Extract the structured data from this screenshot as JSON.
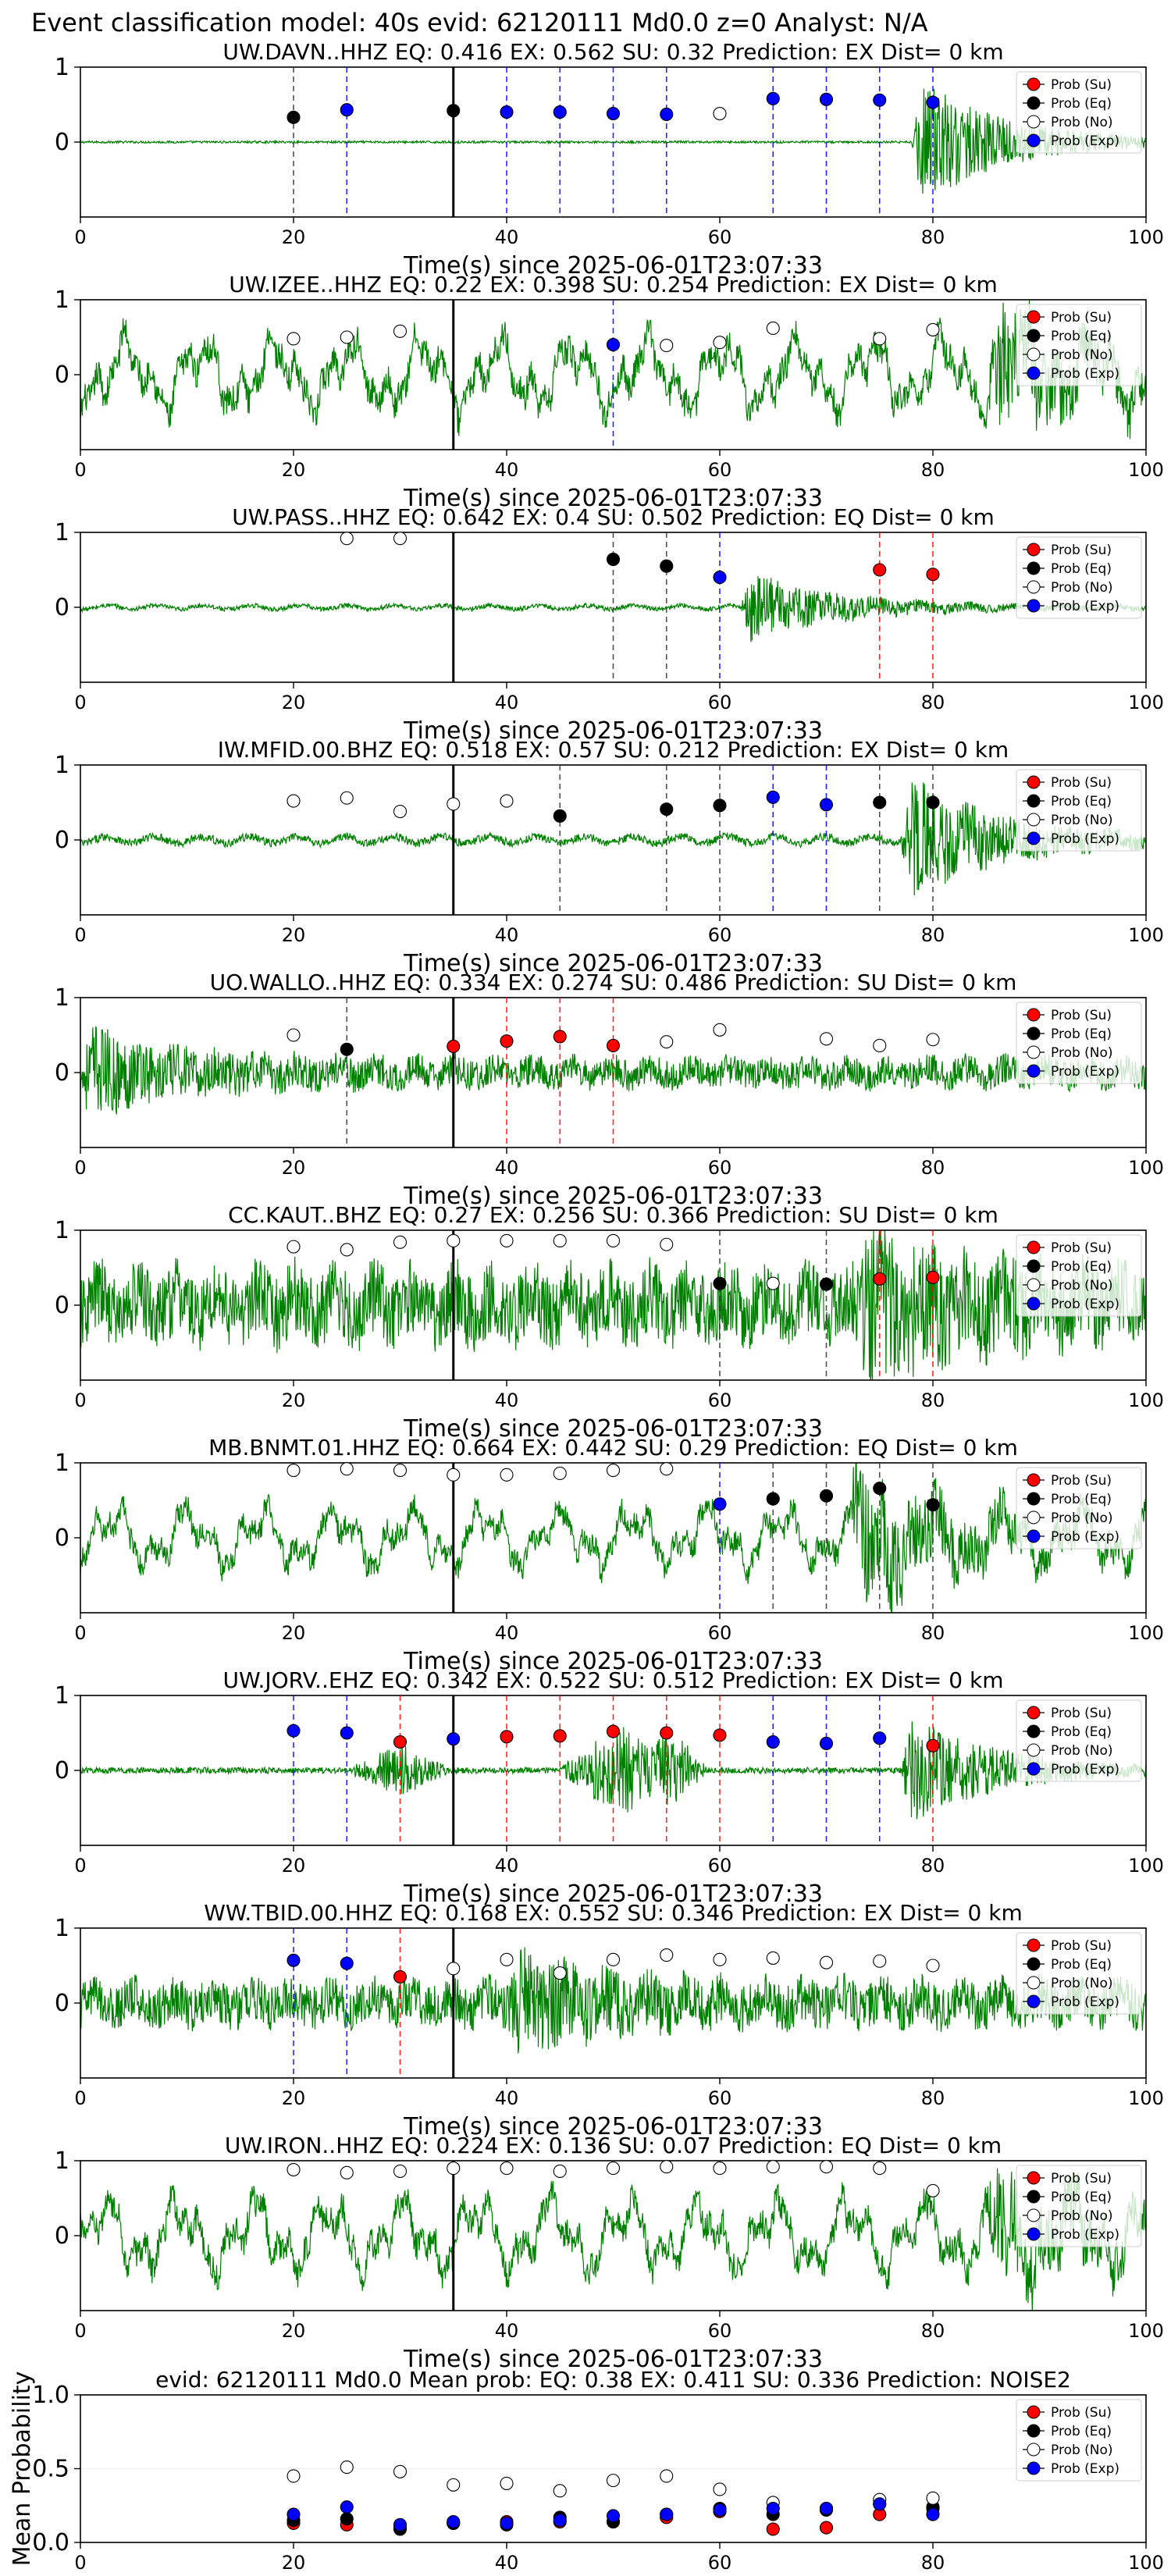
{
  "figure_title": "Event classification model: 40s evid: 62120111 Md0.0 z=0 Analyst: N/A",
  "colors": {
    "waveform": "#008000",
    "su": "#ff0000",
    "eq": "#000000",
    "no": "#ffffff",
    "exp": "#0000ff",
    "picked_line": "#000000"
  },
  "legend": [
    "Prob (Su)",
    "Prob (Eq)",
    "Prob (No)",
    "Prob (Exp)"
  ],
  "chart_data": [
    {
      "type": "scatter",
      "title": "UW.DAVN..HHZ   EQ: 0.416  EX: 0.562  SU: 0.32   Prediction: EX    Dist= 0 km",
      "xlabel": "Time(s) since 2025-06-01T23:07:33",
      "ylabel": "",
      "xlim": [
        0,
        100
      ],
      "ylim": [
        -1,
        1
      ],
      "xticks": [
        0,
        20,
        40,
        60,
        80,
        100
      ],
      "yticks": [
        0,
        1
      ],
      "waveform": {
        "style": "spike",
        "amp": 0.015,
        "burst_start": 78,
        "burst_amp": 0.95
      },
      "picked_time": 35,
      "points": [
        [
          20,
          "eq",
          0.33
        ],
        [
          25,
          "exp",
          0.43
        ],
        [
          35,
          "eq",
          0.42
        ],
        [
          40,
          "exp",
          0.4
        ],
        [
          45,
          "exp",
          0.4
        ],
        [
          50,
          "exp",
          0.38
        ],
        [
          55,
          "exp",
          0.37
        ],
        [
          60,
          "no",
          0.38
        ],
        [
          65,
          "exp",
          0.58
        ],
        [
          70,
          "exp",
          0.57
        ],
        [
          75,
          "exp",
          0.56
        ],
        [
          80,
          "exp",
          0.53
        ]
      ],
      "legend_position": "top-right"
    },
    {
      "type": "scatter",
      "title": "UW.IZEE..HHZ   EQ: 0.22  EX: 0.398  SU: 0.254   Prediction: EX    Dist= 0 km",
      "xlabel": "Time(s) since 2025-06-01T23:07:33",
      "ylabel": "",
      "xlim": [
        0,
        100
      ],
      "ylim": [
        -1,
        1
      ],
      "xticks": [
        0,
        20,
        40,
        60,
        80,
        100
      ],
      "yticks": [
        0,
        1
      ],
      "waveform": {
        "style": "wavy",
        "amp": 0.55,
        "burst_start": 85,
        "burst_amp": 0.7
      },
      "picked_time": 35,
      "points": [
        [
          20,
          "no",
          0.48
        ],
        [
          25,
          "no",
          0.5
        ],
        [
          30,
          "no",
          0.58
        ],
        [
          50,
          "exp",
          0.4
        ],
        [
          55,
          "no",
          0.39
        ],
        [
          60,
          "no",
          0.43
        ],
        [
          65,
          "no",
          0.62
        ],
        [
          75,
          "no",
          0.48
        ],
        [
          80,
          "no",
          0.6
        ]
      ],
      "legend_position": "top-right"
    },
    {
      "type": "scatter",
      "title": "UW.PASS..HHZ   EQ: 0.642  EX: 0.4  SU: 0.502   Prediction: EQ    Dist= 0 km",
      "xlabel": "Time(s) since 2025-06-01T23:07:33",
      "ylabel": "",
      "xlim": [
        0,
        100
      ],
      "ylim": [
        -1,
        1
      ],
      "xticks": [
        0,
        20,
        40,
        60,
        80,
        100
      ],
      "yticks": [
        0,
        1
      ],
      "waveform": {
        "style": "quiet",
        "amp": 0.05,
        "burst_start": 62,
        "burst_amp": 0.5
      },
      "picked_time": 35,
      "points": [
        [
          25,
          "no",
          0.92
        ],
        [
          30,
          "no",
          0.92
        ],
        [
          50,
          "eq",
          0.64
        ],
        [
          55,
          "eq",
          0.55
        ],
        [
          60,
          "exp",
          0.4
        ],
        [
          75,
          "su",
          0.5
        ],
        [
          80,
          "su",
          0.44
        ]
      ],
      "legend_position": "top-right"
    },
    {
      "type": "scatter",
      "title": "IW.MFID.00.BHZ   EQ: 0.518  EX: 0.57  SU: 0.212   Prediction: EX    Dist= 0 km",
      "xlabel": "Time(s) since 2025-06-01T23:07:33",
      "ylabel": "",
      "xlim": [
        0,
        100
      ],
      "ylim": [
        -1,
        1
      ],
      "xticks": [
        0,
        20,
        40,
        60,
        80,
        100
      ],
      "yticks": [
        0,
        1
      ],
      "waveform": {
        "style": "quiet",
        "amp": 0.09,
        "burst_start": 77,
        "burst_amp": 0.9
      },
      "picked_time": 35,
      "points": [
        [
          20,
          "no",
          0.52
        ],
        [
          25,
          "no",
          0.56
        ],
        [
          30,
          "no",
          0.38
        ],
        [
          35,
          "no",
          0.48
        ],
        [
          40,
          "no",
          0.52
        ],
        [
          45,
          "eq",
          0.32
        ],
        [
          55,
          "eq",
          0.41
        ],
        [
          60,
          "eq",
          0.46
        ],
        [
          65,
          "exp",
          0.57
        ],
        [
          70,
          "exp",
          0.47
        ],
        [
          75,
          "eq",
          0.5
        ],
        [
          80,
          "eq",
          0.5
        ]
      ],
      "legend_position": "top-right"
    },
    {
      "type": "scatter",
      "title": "UO.WALLO..HHZ   EQ: 0.334  EX: 0.274  SU: 0.486   Prediction: SU    Dist= 0 km",
      "xlabel": "Time(s) since 2025-06-01T23:07:33",
      "ylabel": "",
      "xlim": [
        0,
        100
      ],
      "ylim": [
        -1,
        1
      ],
      "xticks": [
        0,
        20,
        40,
        60,
        80,
        100
      ],
      "yticks": [
        0,
        1
      ],
      "waveform": {
        "style": "noisy",
        "amp": 0.2,
        "burst_start": 0,
        "burst_amp": 0.5
      },
      "picked_time": 35,
      "points": [
        [
          20,
          "no",
          0.5
        ],
        [
          25,
          "eq",
          0.31
        ],
        [
          35,
          "su",
          0.35
        ],
        [
          40,
          "su",
          0.42
        ],
        [
          45,
          "su",
          0.48
        ],
        [
          50,
          "su",
          0.36
        ],
        [
          55,
          "no",
          0.41
        ],
        [
          60,
          "no",
          0.57
        ],
        [
          70,
          "no",
          0.45
        ],
        [
          75,
          "no",
          0.36
        ],
        [
          80,
          "no",
          0.44
        ]
      ],
      "legend_position": "top-right"
    },
    {
      "type": "scatter",
      "title": "CC.KAUT..BHZ   EQ: 0.27  EX: 0.256  SU: 0.366   Prediction: SU    Dist= 0 km",
      "xlabel": "Time(s) since 2025-06-01T23:07:33",
      "ylabel": "",
      "xlim": [
        0,
        100
      ],
      "ylim": [
        -1,
        1
      ],
      "xticks": [
        0,
        20,
        40,
        60,
        80,
        100
      ],
      "yticks": [
        0,
        1
      ],
      "waveform": {
        "style": "noisy",
        "amp": 0.5,
        "burst_start": 73,
        "burst_amp": 0.8
      },
      "picked_time": 35,
      "points": [
        [
          20,
          "no",
          0.78
        ],
        [
          25,
          "no",
          0.74
        ],
        [
          30,
          "no",
          0.84
        ],
        [
          35,
          "no",
          0.86
        ],
        [
          40,
          "no",
          0.86
        ],
        [
          45,
          "no",
          0.86
        ],
        [
          50,
          "no",
          0.86
        ],
        [
          55,
          "no",
          0.81
        ],
        [
          60,
          "eq",
          0.29
        ],
        [
          65,
          "no",
          0.29
        ],
        [
          70,
          "eq",
          0.28
        ],
        [
          75,
          "su",
          0.35
        ],
        [
          80,
          "su",
          0.37
        ]
      ],
      "legend_position": "top-right"
    },
    {
      "type": "scatter",
      "title": "MB.BNMT.01.HHZ   EQ: 0.664  EX: 0.442  SU: 0.29   Prediction: EQ    Dist= 0 km",
      "xlabel": "Time(s) since 2025-06-01T23:07:33",
      "ylabel": "",
      "xlim": [
        0,
        100
      ],
      "ylim": [
        -1,
        1
      ],
      "xticks": [
        0,
        20,
        40,
        60,
        80,
        100
      ],
      "yticks": [
        0,
        1
      ],
      "waveform": {
        "style": "wavy",
        "amp": 0.45,
        "burst_start": 72,
        "burst_amp": 0.85
      },
      "picked_time": 35,
      "points": [
        [
          20,
          "no",
          0.9
        ],
        [
          25,
          "no",
          0.92
        ],
        [
          30,
          "no",
          0.9
        ],
        [
          35,
          "no",
          0.84
        ],
        [
          40,
          "no",
          0.84
        ],
        [
          45,
          "no",
          0.86
        ],
        [
          50,
          "no",
          0.9
        ],
        [
          55,
          "no",
          0.92
        ],
        [
          60,
          "exp",
          0.45
        ],
        [
          65,
          "eq",
          0.52
        ],
        [
          70,
          "eq",
          0.56
        ],
        [
          75,
          "eq",
          0.66
        ],
        [
          80,
          "eq",
          0.44
        ]
      ],
      "legend_position": "top-right"
    },
    {
      "type": "scatter",
      "title": "UW.JORV..EHZ   EQ: 0.342  EX: 0.522  SU: 0.512   Prediction: EX    Dist= 0 km",
      "xlabel": "Time(s) since 2025-06-01T23:07:33",
      "ylabel": "",
      "xlim": [
        0,
        100
      ],
      "ylim": [
        -1,
        1
      ],
      "xticks": [
        0,
        20,
        40,
        60,
        80,
        100
      ],
      "yticks": [
        0,
        1
      ],
      "waveform": {
        "style": "events",
        "amp": 0.04,
        "burst_start": 77,
        "burst_amp": 0.8
      },
      "picked_time": 35,
      "points": [
        [
          20,
          "exp",
          0.53
        ],
        [
          25,
          "exp",
          0.5
        ],
        [
          30,
          "su",
          0.38
        ],
        [
          35,
          "exp",
          0.42
        ],
        [
          40,
          "su",
          0.45
        ],
        [
          45,
          "su",
          0.46
        ],
        [
          50,
          "su",
          0.52
        ],
        [
          55,
          "su",
          0.5
        ],
        [
          60,
          "su",
          0.47
        ],
        [
          65,
          "exp",
          0.38
        ],
        [
          70,
          "exp",
          0.36
        ],
        [
          75,
          "exp",
          0.43
        ],
        [
          80,
          "su",
          0.33
        ]
      ],
      "legend_position": "top-right"
    },
    {
      "type": "scatter",
      "title": "WW.TBID.00.HHZ   EQ: 0.168  EX: 0.552  SU: 0.346   Prediction: EX    Dist= 0 km",
      "xlabel": "Time(s) since 2025-06-01T23:07:33",
      "ylabel": "",
      "xlim": [
        0,
        100
      ],
      "ylim": [
        -1,
        1
      ],
      "xticks": [
        0,
        20,
        40,
        60,
        80,
        100
      ],
      "yticks": [
        0,
        1
      ],
      "waveform": {
        "style": "noisy",
        "amp": 0.3,
        "burst_start": 40,
        "burst_amp": 0.5
      },
      "picked_time": 35,
      "points": [
        [
          20,
          "exp",
          0.57
        ],
        [
          25,
          "exp",
          0.53
        ],
        [
          30,
          "su",
          0.35
        ],
        [
          35,
          "no",
          0.46
        ],
        [
          40,
          "no",
          0.58
        ],
        [
          45,
          "no",
          0.4
        ],
        [
          50,
          "no",
          0.58
        ],
        [
          55,
          "no",
          0.64
        ],
        [
          60,
          "no",
          0.58
        ],
        [
          65,
          "no",
          0.6
        ],
        [
          70,
          "no",
          0.54
        ],
        [
          75,
          "no",
          0.56
        ],
        [
          80,
          "no",
          0.5
        ]
      ],
      "legend_position": "top-right"
    },
    {
      "type": "scatter",
      "title": "UW.IRON..HHZ   EQ: 0.224  EX: 0.136  SU: 0.07   Prediction: EQ    Dist= 0 km",
      "xlabel": "Time(s) since 2025-06-01T23:07:33",
      "ylabel": "",
      "xlim": [
        0,
        100
      ],
      "ylim": [
        -1,
        1
      ],
      "xticks": [
        0,
        20,
        40,
        60,
        80,
        100
      ],
      "yticks": [
        0,
        1
      ],
      "waveform": {
        "style": "wavy",
        "amp": 0.55,
        "burst_start": 85,
        "burst_amp": 0.6
      },
      "picked_time": 35,
      "points": [
        [
          20,
          "no",
          0.88
        ],
        [
          25,
          "no",
          0.84
        ],
        [
          30,
          "no",
          0.86
        ],
        [
          35,
          "no",
          0.9
        ],
        [
          40,
          "no",
          0.9
        ],
        [
          45,
          "no",
          0.86
        ],
        [
          50,
          "no",
          0.9
        ],
        [
          55,
          "no",
          0.92
        ],
        [
          60,
          "no",
          0.9
        ],
        [
          65,
          "no",
          0.92
        ],
        [
          70,
          "no",
          0.92
        ],
        [
          75,
          "no",
          0.9
        ],
        [
          80,
          "no",
          0.6
        ]
      ],
      "legend_position": "top-right"
    },
    {
      "type": "scatter",
      "title": "evid: 62120111  Md0.0   Mean prob:   EQ: 0.38  EX: 0.411  SU: 0.336   Prediction: NOISE2",
      "xlabel": "",
      "ylabel": "Mean Probability",
      "xlim": [
        0,
        100
      ],
      "ylim": [
        0,
        1
      ],
      "xticks": [
        0,
        20,
        40,
        60,
        80,
        100
      ],
      "yticks": [
        0.0,
        0.5,
        1.0
      ],
      "ytick_labels": [
        "0.0",
        "0.5",
        "1.0"
      ],
      "series": [
        {
          "name": "Prob (Su)",
          "key": "su",
          "x": [
            20,
            25,
            30,
            35,
            40,
            45,
            50,
            55,
            60,
            65,
            70,
            75,
            80
          ],
          "y": [
            0.13,
            0.12,
            0.1,
            0.13,
            0.14,
            0.14,
            0.14,
            0.17,
            0.21,
            0.09,
            0.1,
            0.19,
            0.24
          ]
        },
        {
          "name": "Prob (Eq)",
          "key": "eq",
          "x": [
            20,
            25,
            30,
            35,
            40,
            45,
            50,
            55,
            60,
            65,
            70,
            75,
            80
          ],
          "y": [
            0.15,
            0.16,
            0.09,
            0.13,
            0.12,
            0.17,
            0.14,
            0.19,
            0.23,
            0.19,
            0.22,
            0.26,
            0.23
          ]
        },
        {
          "name": "Prob (No)",
          "key": "no",
          "x": [
            20,
            25,
            30,
            35,
            40,
            45,
            50,
            55,
            60,
            65,
            70,
            75,
            80
          ],
          "y": [
            0.45,
            0.51,
            0.48,
            0.39,
            0.4,
            0.35,
            0.42,
            0.45,
            0.36,
            0.27,
            0.23,
            0.29,
            0.3
          ]
        },
        {
          "name": "Prob (Exp)",
          "key": "exp",
          "x": [
            20,
            25,
            30,
            35,
            40,
            45,
            50,
            55,
            60,
            65,
            70,
            75,
            80
          ],
          "y": [
            0.19,
            0.24,
            0.12,
            0.14,
            0.13,
            0.15,
            0.18,
            0.19,
            0.22,
            0.23,
            0.23,
            0.26,
            0.19
          ]
        }
      ],
      "legend_position": "top-right"
    }
  ]
}
